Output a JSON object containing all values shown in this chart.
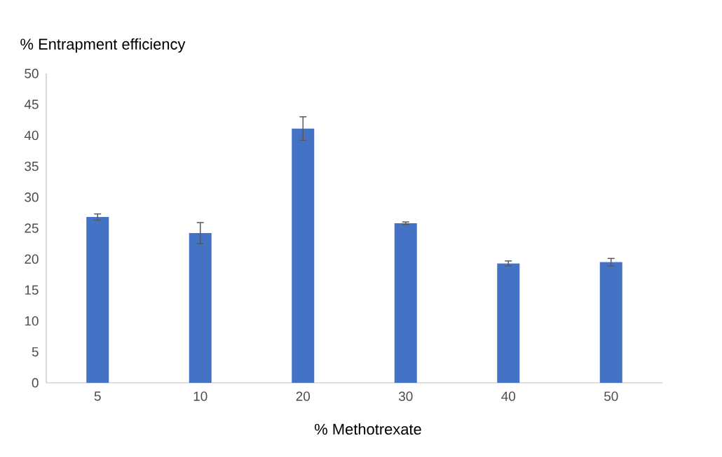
{
  "chart_data": {
    "type": "bar",
    "xlabel": "% Methotrexate",
    "ylabel": "% Entrapment efficiency",
    "categories": [
      "5",
      "10",
      "20",
      "30",
      "40",
      "50"
    ],
    "values": [
      26.8,
      24.2,
      41.1,
      25.8,
      19.3,
      19.5
    ],
    "errors": [
      0.5,
      1.7,
      1.9,
      0.2,
      0.4,
      0.6
    ],
    "color": "#4472c4",
    "ylim": [
      0,
      50
    ],
    "yticks": [
      0,
      5,
      10,
      15,
      20,
      25,
      30,
      35,
      40,
      45,
      50
    ],
    "grid": false
  }
}
